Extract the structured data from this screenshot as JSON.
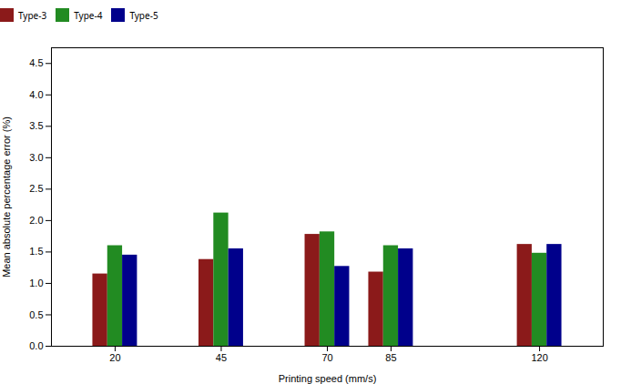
{
  "chart_data": {
    "type": "bar",
    "x": [
      20,
      45,
      70,
      85,
      120
    ],
    "xlabel": "Printing speed (mm/s)",
    "ylabel": "Mean absolute percentage error (%)",
    "xlim": [
      5,
      135
    ],
    "xticks": [
      20,
      45,
      70,
      85,
      120
    ],
    "ylim": [
      0.0,
      4.75
    ],
    "yticks": [
      {
        "value": 0,
        "label": "0.0"
      },
      0.5,
      {
        "value": 1,
        "label": "1.0"
      },
      1.5,
      {
        "value": 2,
        "label": "2.0"
      },
      2.5,
      {
        "value": 3,
        "label": "3.0"
      },
      3.5,
      {
        "value": 4,
        "label": "4.0"
      },
      4.5
    ],
    "series": [
      {
        "name": "Type-3",
        "color": "#8B1A1A",
        "values": [
          1.15,
          1.38,
          1.78,
          1.18,
          1.62
        ]
      },
      {
        "name": "Type-4",
        "color": "#228B22",
        "values": [
          1.6,
          2.12,
          1.82,
          1.6,
          1.48
        ]
      },
      {
        "name": "Type-5",
        "color": "#00008B",
        "values": [
          1.45,
          1.55,
          1.27,
          1.55,
          1.62
        ]
      }
    ],
    "legend": "upper center",
    "grid": false
  }
}
